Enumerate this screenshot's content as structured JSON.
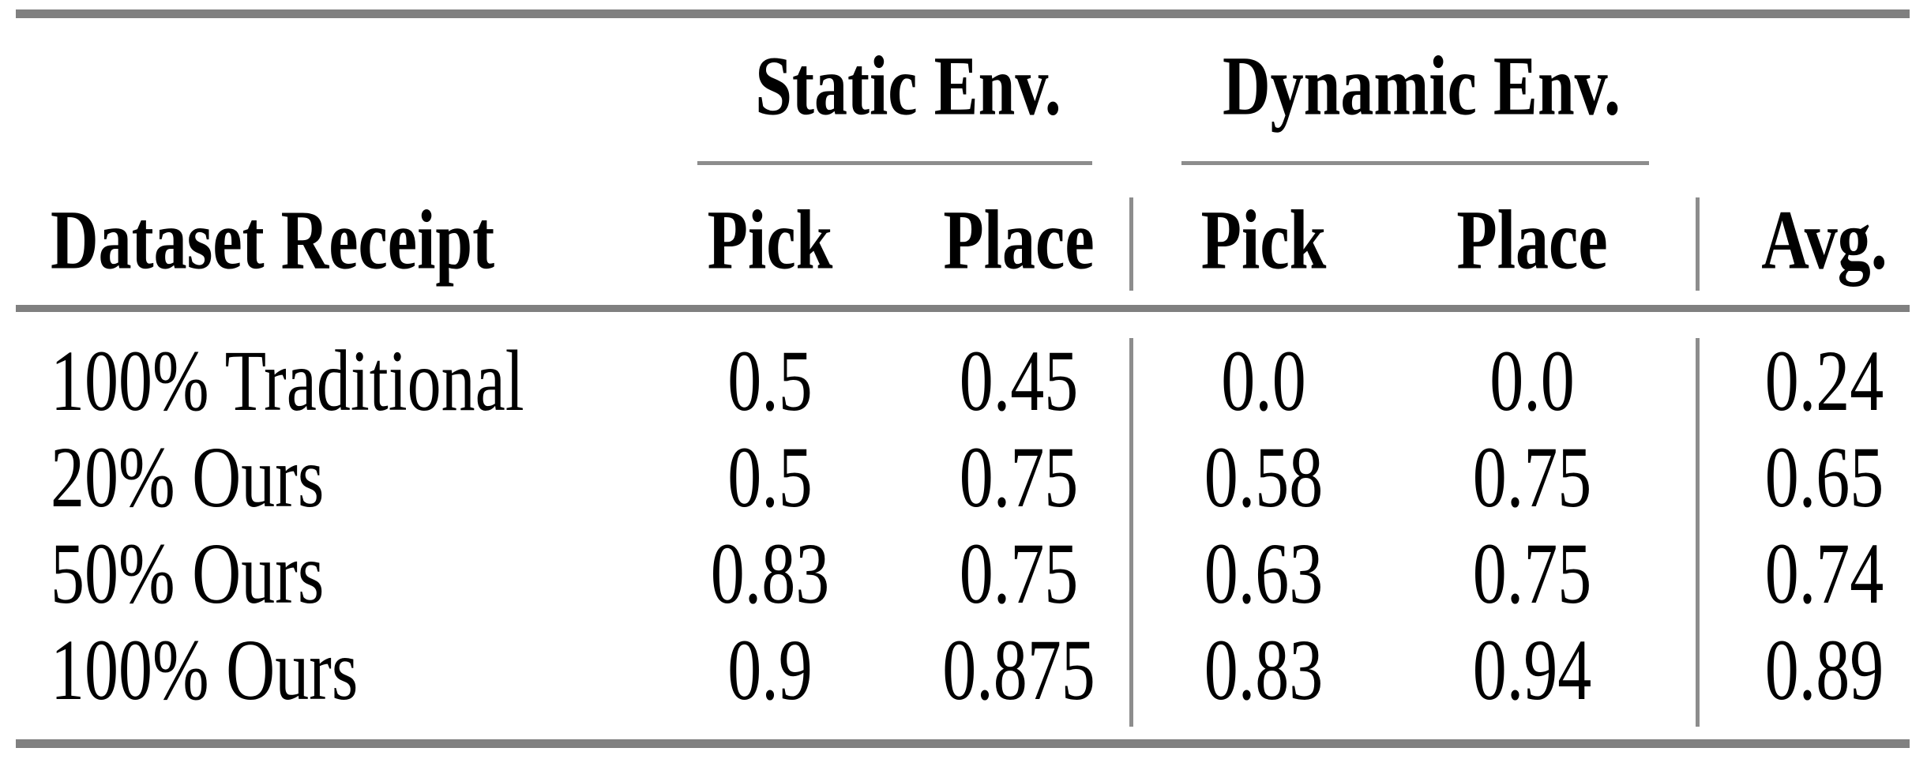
{
  "table": {
    "row_header_label": "Dataset Receipt",
    "groups": [
      {
        "label": "Static Env.",
        "subcolumns": [
          "Pick",
          "Place"
        ]
      },
      {
        "label": "Dynamic Env.",
        "subcolumns": [
          "Pick",
          "Place"
        ]
      }
    ],
    "avg_label": "Avg.",
    "rows": [
      {
        "label": "100% Traditional",
        "cells": [
          "0.5",
          "0.45",
          "0.0",
          "0.0",
          "0.24"
        ]
      },
      {
        "label": "20% Ours",
        "cells": [
          "0.5",
          "0.75",
          "0.58",
          "0.75",
          "0.65"
        ]
      },
      {
        "label": "50% Ours",
        "cells": [
          "0.83",
          "0.75",
          "0.63",
          "0.75",
          "0.74"
        ]
      },
      {
        "label": "100% Ours",
        "cells": [
          "0.9",
          "0.875",
          "0.83",
          "0.94",
          "0.89"
        ]
      }
    ]
  },
  "chart_data": {
    "type": "table",
    "columns": [
      "Dataset Receipt",
      "Static Env. Pick",
      "Static Env. Place",
      "Dynamic Env. Pick",
      "Dynamic Env. Place",
      "Avg."
    ],
    "rows": [
      [
        "100% Traditional",
        0.5,
        0.45,
        0.0,
        0.0,
        0.24
      ],
      [
        "20% Ours",
        0.5,
        0.75,
        0.58,
        0.75,
        0.65
      ],
      [
        "50% Ours",
        0.83,
        0.75,
        0.63,
        0.75,
        0.74
      ],
      [
        "100% Ours",
        0.9,
        0.875,
        0.83,
        0.94,
        0.89
      ]
    ]
  },
  "colors": {
    "rule_thick": "#808080",
    "rule_thin": "#8d8d8d",
    "text": "#000000",
    "background": "#ffffff"
  }
}
